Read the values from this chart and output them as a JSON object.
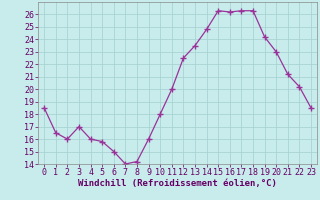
{
  "x": [
    0,
    1,
    2,
    3,
    4,
    5,
    6,
    7,
    8,
    9,
    10,
    11,
    12,
    13,
    14,
    15,
    16,
    17,
    18,
    19,
    20,
    21,
    22,
    23
  ],
  "y": [
    18.5,
    16.5,
    16.0,
    17.0,
    16.0,
    15.8,
    15.0,
    14.0,
    14.2,
    16.0,
    18.0,
    20.0,
    22.5,
    23.5,
    24.8,
    26.3,
    26.2,
    26.3,
    26.3,
    24.2,
    23.0,
    21.2,
    20.2,
    18.5
  ],
  "line_color": "#993399",
  "marker": "+",
  "marker_size": 4,
  "bg_color": "#c8ecec",
  "grid_color": "#aad4d4",
  "xlabel": "Windchill (Refroidissement éolien,°C)",
  "ylim_min": 14,
  "ylim_max": 27,
  "xlim_min": -0.5,
  "xlim_max": 23.5,
  "yticks": [
    14,
    15,
    16,
    17,
    18,
    19,
    20,
    21,
    22,
    23,
    24,
    25,
    26
  ],
  "xticks": [
    0,
    1,
    2,
    3,
    4,
    5,
    6,
    7,
    8,
    9,
    10,
    11,
    12,
    13,
    14,
    15,
    16,
    17,
    18,
    19,
    20,
    21,
    22,
    23
  ],
  "axis_label_color": "#660066",
  "tick_label_color": "#660066",
  "xlabel_fontsize": 6.5,
  "tick_fontsize": 6.0,
  "line_width": 0.9,
  "marker_linewidth": 1.0
}
